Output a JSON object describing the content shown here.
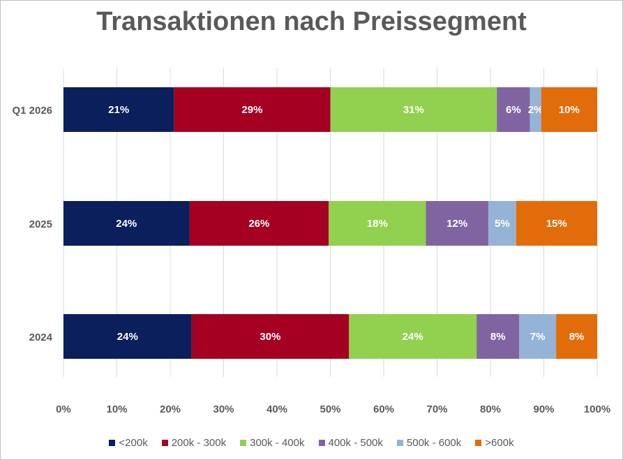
{
  "chart_data": {
    "type": "bar",
    "orientation": "horizontal",
    "stacked": "percent",
    "title": "Transaktionen nach Preissegment",
    "categories": [
      "Q1 2026",
      "2025",
      "2024"
    ],
    "series": [
      {
        "name": "<200k",
        "color": "#0a1f5c",
        "values": [
          21,
          24,
          24
        ]
      },
      {
        "name": "200k - 300k",
        "color": "#a50021",
        "values": [
          29,
          26,
          30
        ]
      },
      {
        "name": "300k - 400k",
        "color": "#92d050",
        "values": [
          31,
          18,
          24
        ]
      },
      {
        "name": "400k - 500k",
        "color": "#8064a2",
        "values": [
          6,
          12,
          8
        ]
      },
      {
        "name": "500k - 600k",
        "color": "#95b3d7",
        "values": [
          2,
          5,
          7
        ]
      },
      {
        "name": ">600k",
        "color": "#e36c0a",
        "values": [
          10,
          15,
          8
        ]
      }
    ],
    "segment_widths": [
      [
        20.7,
        29.3,
        31.2,
        6.2,
        2.1,
        10.5
      ],
      [
        23.6,
        26.1,
        18.2,
        11.7,
        5.2,
        15.2
      ],
      [
        24.0,
        29.5,
        23.9,
        8.0,
        6.9,
        7.7
      ]
    ],
    "x_ticks": [
      "0%",
      "10%",
      "20%",
      "30%",
      "40%",
      "50%",
      "60%",
      "70%",
      "80%",
      "90%",
      "100%"
    ],
    "xlim": [
      0,
      100
    ],
    "grid": true,
    "legend_position": "bottom"
  }
}
